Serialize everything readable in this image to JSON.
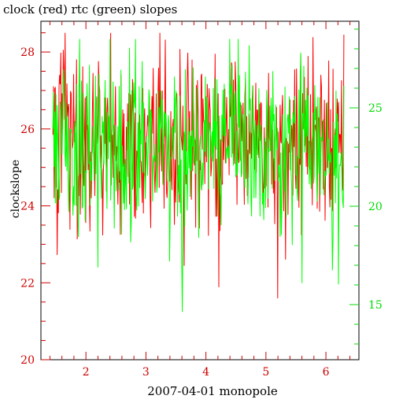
{
  "chart_data": {
    "type": "line",
    "title": "clock (red) rtc (green) slopes",
    "xlabel": "2007-04-01 monopole",
    "ylabel": "clockslope",
    "xlim": [
      1.25,
      6.55
    ],
    "ylim_left": [
      20,
      28.8
    ],
    "ylim_right": [
      12.2,
      29.4
    ],
    "x_ticks": [
      "2",
      "3",
      "4",
      "5",
      "6"
    ],
    "y_left_ticks": [
      "20",
      "22",
      "24",
      "26",
      "28"
    ],
    "y_right_ticks": [
      "15",
      "20",
      "25"
    ],
    "grid": false,
    "series": [
      {
        "name": "clock",
        "axis": "left",
        "color": "#ff0000",
        "x_range": [
          1.45,
          6.3
        ],
        "n_points": 480,
        "center": 25.6,
        "spread": 1.15,
        "min": 20.4,
        "max": 28.5
      },
      {
        "name": "rtc",
        "axis": "right",
        "color": "#00ff00",
        "x_range": [
          1.45,
          6.3
        ],
        "n_points": 480,
        "center": 23.0,
        "spread": 2.2,
        "min": 13.2,
        "max": 28.5
      }
    ]
  },
  "colors": {
    "clock": "#ff0000",
    "rtc": "#00ff00",
    "clock_axis": "#cc0000",
    "rtc_axis": "#00dd00",
    "frame": "#000000"
  }
}
